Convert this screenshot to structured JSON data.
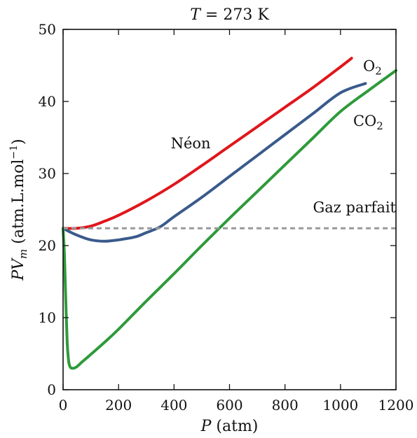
{
  "chart_data": {
    "type": "line",
    "title": "T = 273 K",
    "title_parts": {
      "var": "T",
      "rest": " = 273 K"
    },
    "xlabel": "P (atm)",
    "xlabel_parts": {
      "var": "P",
      "rest": " (atm)"
    },
    "ylabel": "PVm (atm.L.mol−1)",
    "ylabel_parts": {
      "var": "PV",
      "sub": "m",
      "rest": " (atm.L.mol",
      "sup": "−1",
      "close": ")"
    },
    "xlim": [
      0,
      1200
    ],
    "ylim": [
      0,
      50
    ],
    "xticks": [
      0,
      200,
      400,
      600,
      800,
      1000,
      1200
    ],
    "yticks": [
      0,
      10,
      20,
      30,
      40,
      50
    ],
    "grid": false,
    "legend": "none",
    "series": [
      {
        "name": "Néon",
        "label_parts": {
          "text": "Néon"
        },
        "color": "#e0161b",
        "style": "solid",
        "x": [
          0,
          50,
          100,
          150,
          200,
          300,
          400,
          500,
          600,
          700,
          800,
          900,
          1000,
          1040
        ],
        "y": [
          22.4,
          22.4,
          22.7,
          23.4,
          24.2,
          26.2,
          28.5,
          31.1,
          33.8,
          36.5,
          39.2,
          41.9,
          44.8,
          46.0
        ]
      },
      {
        "name": "O2",
        "label_parts": {
          "text": "O",
          "sub": "2"
        },
        "color": "#3a5a8c",
        "style": "solid",
        "x": [
          0,
          30,
          60,
          100,
          150,
          200,
          260,
          300,
          350,
          400,
          500,
          600,
          700,
          800,
          900,
          1000,
          1090
        ],
        "y": [
          22.4,
          21.8,
          21.3,
          20.8,
          20.6,
          20.8,
          21.2,
          21.8,
          22.6,
          24.0,
          26.7,
          29.6,
          32.5,
          35.4,
          38.3,
          41.2,
          42.5
        ]
      },
      {
        "name": "CO2",
        "label_parts": {
          "text": "CO",
          "sub": "2"
        },
        "color": "#2e9a3a",
        "style": "solid",
        "x": [
          0,
          5,
          10,
          15,
          20,
          25,
          30,
          40,
          50,
          70,
          100,
          150,
          200,
          300,
          400,
          500,
          600,
          700,
          800,
          900,
          1000,
          1100,
          1200
        ],
        "y": [
          22.4,
          18.5,
          12.0,
          6.5,
          4.0,
          3.2,
          3.0,
          3.0,
          3.2,
          3.9,
          4.9,
          6.6,
          8.4,
          12.3,
          16.1,
          20.0,
          23.8,
          27.5,
          31.2,
          34.9,
          38.6,
          41.5,
          44.3
        ]
      },
      {
        "name": "Gaz parfait",
        "label_parts": {
          "text": "Gaz parfait"
        },
        "color": "#999999",
        "style": "dashed",
        "x": [
          0,
          1200
        ],
        "y": [
          22.4,
          22.4
        ]
      }
    ],
    "annotations": [
      {
        "series": "Néon",
        "anchor_x": 460,
        "anchor_y": 33.5
      },
      {
        "series": "O2",
        "anchor_x": 1115,
        "anchor_y": 44.2
      },
      {
        "series": "CO2",
        "anchor_x": 1100,
        "anchor_y": 36.6
      },
      {
        "series": "Gaz parfait",
        "anchor_x": 1200,
        "anchor_y": 24.6
      }
    ]
  }
}
